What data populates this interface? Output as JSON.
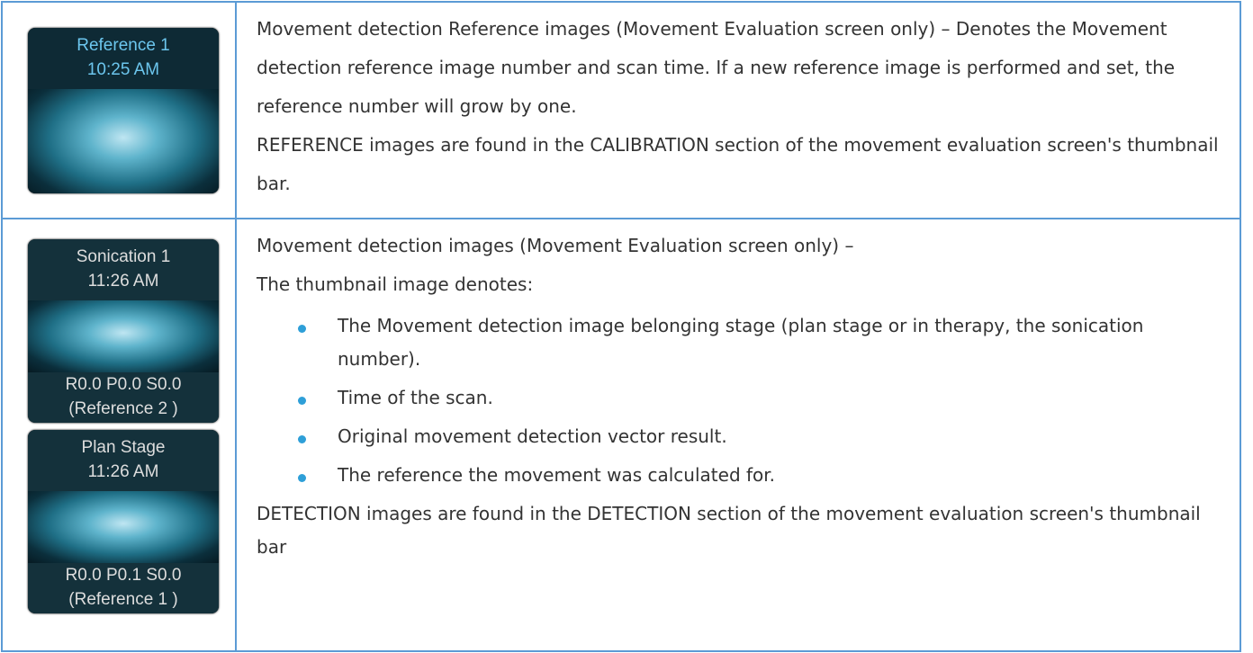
{
  "rows": [
    {
      "thumbnails": [
        {
          "top": [
            "Reference 1",
            "10:25 AM"
          ],
          "bottom": []
        }
      ],
      "paragraphs": [
        "Movement detection Reference images (Movement Evaluation screen only) – Denotes the Movement detection reference image number and scan time. If a new reference image is performed and set, the reference number will grow by one.",
        "REFERENCE images are found in the CALIBRATION section of the movement evaluation screen's thumbnail bar."
      ],
      "bullets": [],
      "closing": []
    },
    {
      "thumbnails": [
        {
          "top": [
            "Sonication 1",
            "11:26 AM"
          ],
          "bottom": [
            "R0.0 P0.0 S0.0",
            "(Reference  2 )"
          ]
        },
        {
          "top": [
            "Plan Stage",
            "11:26 AM"
          ],
          "bottom": [
            "R0.0 P0.1 S0.0",
            "(Reference  1 )"
          ]
        }
      ],
      "paragraphs": [
        "Movement detection images (Movement Evaluation screen only) –",
        "The thumbnail image denotes:"
      ],
      "bullets": [
        "The Movement detection image belonging stage (plan stage or in therapy, the sonication number).",
        "Time of the scan.",
        "Original movement detection vector result.",
        "The reference the movement was calculated for."
      ],
      "closing": [
        "DETECTION images are found in the DETECTION section of the movement evaluation screen's thumbnail bar"
      ]
    }
  ]
}
